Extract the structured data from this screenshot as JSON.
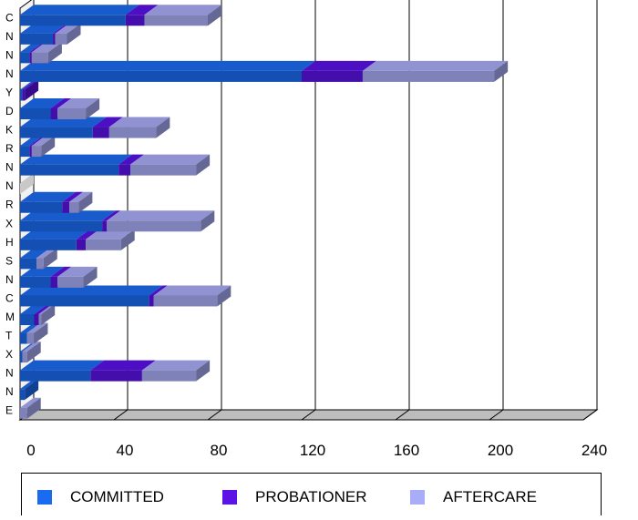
{
  "chart_data": {
    "type": "bar",
    "orientation": "horizontal",
    "stacked": true,
    "three_d": true,
    "categories": [
      "C",
      "N",
      "N",
      "N",
      "Y",
      "D",
      "K",
      "R",
      "N",
      "N",
      "R",
      "X",
      "H",
      "S",
      "N",
      "C",
      "M",
      "T",
      "X",
      "N",
      "N",
      "E"
    ],
    "series": [
      {
        "name": "COMMITTED",
        "color": "#1b6bf0",
        "values": [
          45,
          14,
          4,
          120,
          1,
          13,
          31,
          4,
          42,
          0,
          18,
          35,
          24,
          7,
          13,
          55,
          6,
          3,
          1,
          30,
          2,
          0
        ]
      },
      {
        "name": "PROBATIONER",
        "color": "#5a12e6",
        "values": [
          8,
          1,
          1,
          26,
          1,
          3,
          7,
          1,
          5,
          0,
          3,
          2,
          4,
          0,
          3,
          2,
          2,
          0,
          0,
          22,
          0,
          0
        ]
      },
      {
        "name": "AFTERCARE",
        "color": "#a9acf7",
        "values": [
          27,
          5,
          7,
          56,
          0,
          12,
          20,
          4,
          28,
          0,
          4,
          40,
          15,
          3,
          11,
          27,
          1,
          3,
          2,
          23,
          0,
          3
        ]
      }
    ],
    "x_ticks": [
      "0",
      "40",
      "80",
      "120",
      "160",
      "200",
      "240"
    ],
    "xlim": [
      0,
      240
    ],
    "grid": true,
    "legend_position": "bottom"
  },
  "legend": {
    "items": [
      {
        "label": "COMMITTED",
        "color": "#1b6bf0"
      },
      {
        "label": "PROBATIONER",
        "color": "#5a12e6"
      },
      {
        "label": "AFTERCARE",
        "color": "#a9acf7"
      }
    ]
  }
}
